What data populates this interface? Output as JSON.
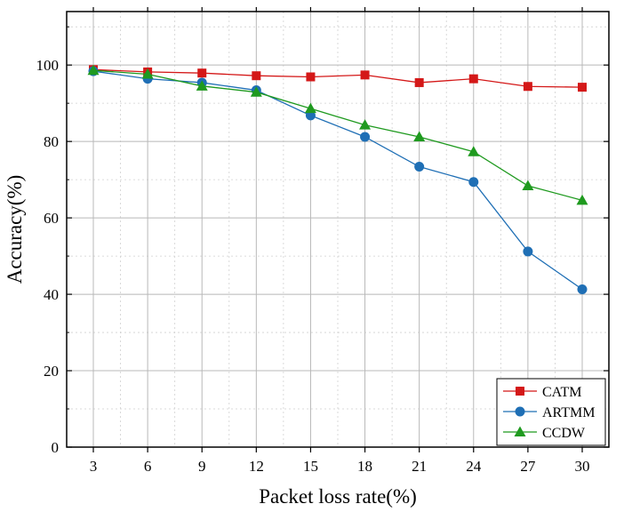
{
  "chart_data": {
    "type": "line",
    "title": "",
    "xlabel": "Packet loss rate(%)",
    "ylabel": "Accuracy(%)",
    "x": [
      3,
      6,
      9,
      12,
      15,
      18,
      21,
      24,
      27,
      30
    ],
    "x_tick_labels": [
      "3",
      "6",
      "9",
      "12",
      "15",
      "18",
      "21",
      "24",
      "27",
      "30"
    ],
    "ylim": [
      0,
      114
    ],
    "y_ticks": [
      0,
      20,
      40,
      60,
      80,
      100
    ],
    "y_tick_labels": [
      "0",
      "20",
      "40",
      "60",
      "80",
      "100"
    ],
    "grid": true,
    "legend_position": "bottom-right",
    "series": [
      {
        "name": "CATM",
        "marker": "square",
        "color": "#d41818",
        "values": [
          98.8,
          98.2,
          97.9,
          97.2,
          96.9,
          97.4,
          95.4,
          96.4,
          94.4,
          94.2
        ]
      },
      {
        "name": "ARTMM",
        "marker": "circle",
        "color": "#1f6fb5",
        "values": [
          98.4,
          96.4,
          95.4,
          93.4,
          86.8,
          81.2,
          73.4,
          69.4,
          51.2,
          41.3
        ]
      },
      {
        "name": "CCDW",
        "marker": "triangle",
        "color": "#1f9a1f",
        "values": [
          98.6,
          97.6,
          94.5,
          92.9,
          88.6,
          84.3,
          81.2,
          77.3,
          68.4,
          64.6
        ]
      }
    ]
  }
}
